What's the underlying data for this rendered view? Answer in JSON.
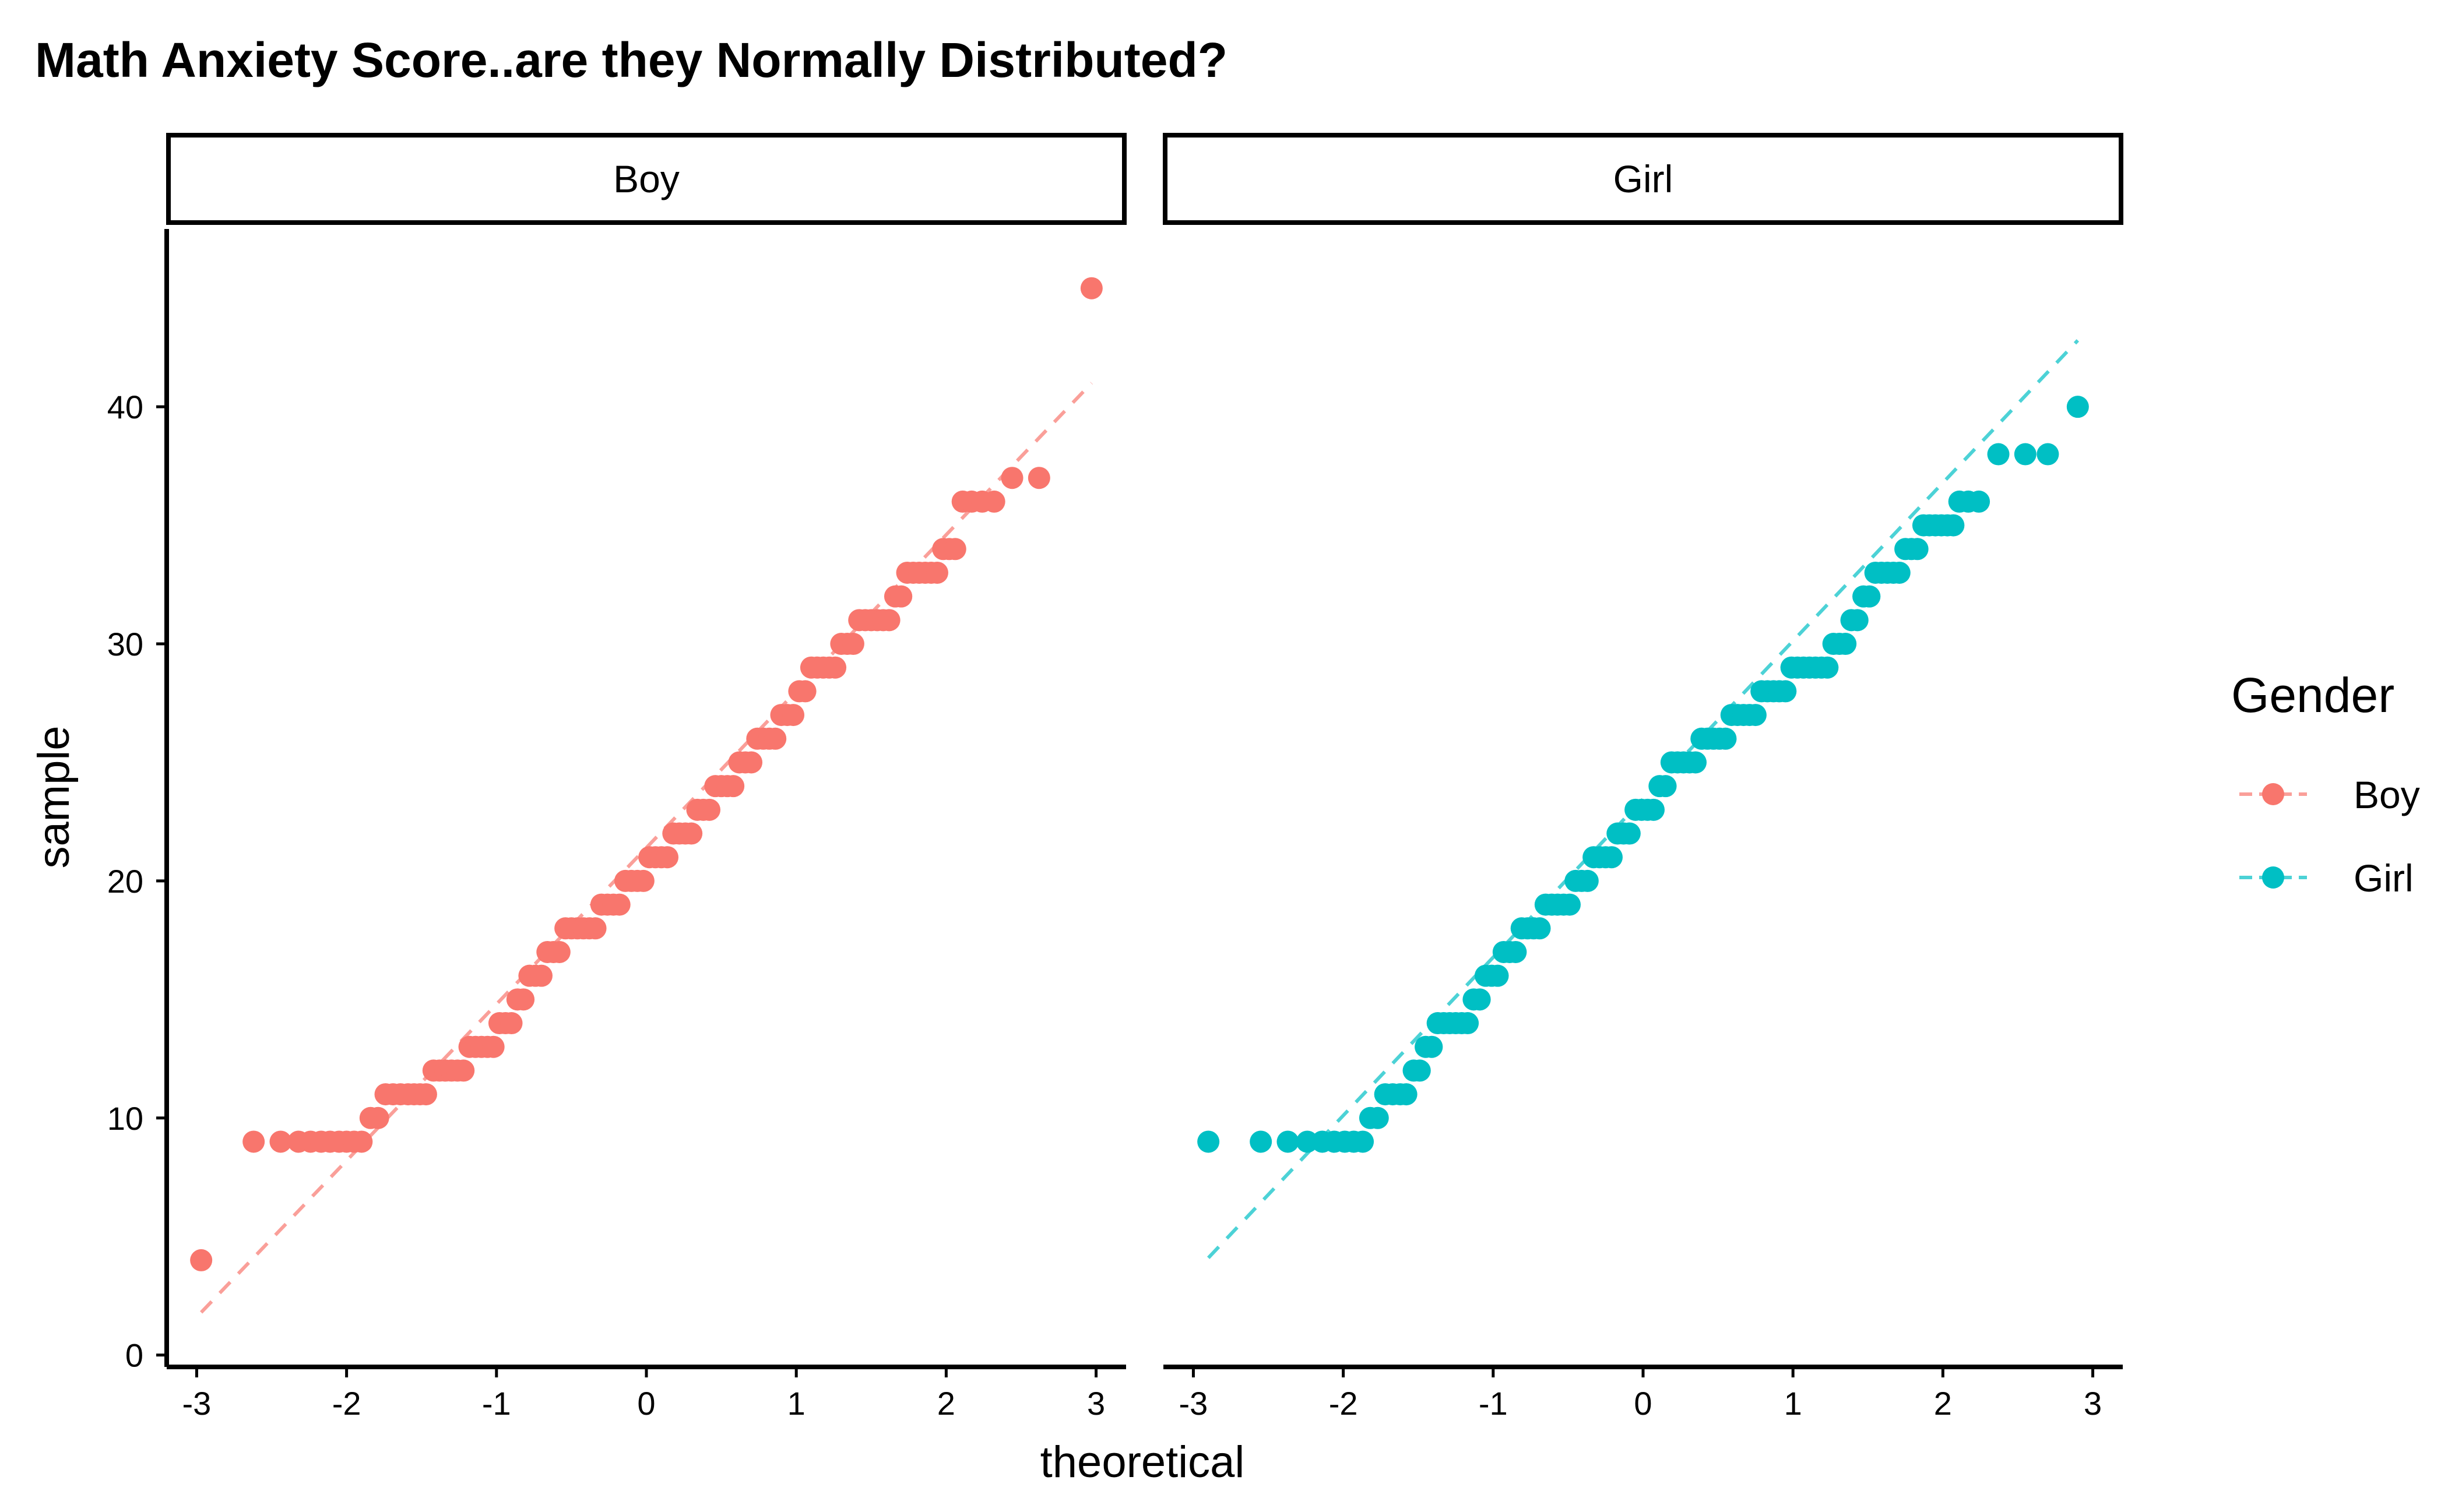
{
  "chart_data": {
    "type": "scatter",
    "subtype": "qq-plot",
    "title": "Math Anxiety Score..are they Normally Distributed?",
    "xlabel": "theoretical",
    "ylabel": "sample",
    "xlim": [
      -3.2,
      3.2
    ],
    "ylim": [
      -0.5,
      47.5
    ],
    "xticks": [
      -3,
      -2,
      -1,
      0,
      1,
      2,
      3
    ],
    "yticks": [
      0,
      10,
      20,
      30,
      40
    ],
    "grid": false,
    "legend": {
      "title": "Gender",
      "placement": "right",
      "entries": [
        "Boy",
        "Girl"
      ]
    },
    "panels": [
      {
        "strip_label": "Boy",
        "series": "Boy",
        "color": "#F8766D",
        "reference_line": {
          "x": [
            -2.97,
            2.97
          ],
          "y": [
            1.8,
            41.0
          ]
        },
        "points": [
          [
            -2.97,
            4
          ],
          [
            -2.62,
            9
          ],
          [
            -2.44,
            9
          ],
          [
            -2.32,
            9
          ],
          [
            -2.24,
            9
          ],
          [
            -2.17,
            9
          ],
          [
            -2.11,
            9
          ],
          [
            -2.05,
            9
          ],
          [
            -2.0,
            9
          ],
          [
            -1.95,
            9
          ],
          [
            -1.9,
            9
          ],
          [
            -1.84,
            10
          ],
          [
            -1.79,
            10
          ],
          [
            -1.74,
            11
          ],
          [
            -1.69,
            11
          ],
          [
            -1.64,
            11
          ],
          [
            -1.59,
            11
          ],
          [
            -1.55,
            11
          ],
          [
            -1.51,
            11
          ],
          [
            -1.47,
            11
          ],
          [
            -1.42,
            12
          ],
          [
            -1.38,
            12
          ],
          [
            -1.34,
            12
          ],
          [
            -1.3,
            12
          ],
          [
            -1.26,
            12
          ],
          [
            -1.22,
            12
          ],
          [
            -1.18,
            13
          ],
          [
            -1.14,
            13
          ],
          [
            -1.1,
            13
          ],
          [
            -1.06,
            13
          ],
          [
            -1.02,
            13
          ],
          [
            -0.98,
            14
          ],
          [
            -0.94,
            14
          ],
          [
            -0.9,
            14
          ],
          [
            -0.86,
            15
          ],
          [
            -0.82,
            15
          ],
          [
            -0.78,
            16
          ],
          [
            -0.74,
            16
          ],
          [
            -0.7,
            16
          ],
          [
            -0.66,
            17
          ],
          [
            -0.62,
            17
          ],
          [
            -0.58,
            17
          ],
          [
            -0.54,
            18
          ],
          [
            -0.5,
            18
          ],
          [
            -0.46,
            18
          ],
          [
            -0.42,
            18
          ],
          [
            -0.38,
            18
          ],
          [
            -0.34,
            18
          ],
          [
            -0.3,
            19
          ],
          [
            -0.26,
            19
          ],
          [
            -0.22,
            19
          ],
          [
            -0.18,
            19
          ],
          [
            -0.14,
            20
          ],
          [
            -0.1,
            20
          ],
          [
            -0.06,
            20
          ],
          [
            -0.02,
            20
          ],
          [
            0.02,
            21
          ],
          [
            0.06,
            21
          ],
          [
            0.1,
            21
          ],
          [
            0.14,
            21
          ],
          [
            0.18,
            22
          ],
          [
            0.22,
            22
          ],
          [
            0.26,
            22
          ],
          [
            0.3,
            22
          ],
          [
            0.34,
            23
          ],
          [
            0.38,
            23
          ],
          [
            0.42,
            23
          ],
          [
            0.46,
            24
          ],
          [
            0.5,
            24
          ],
          [
            0.54,
            24
          ],
          [
            0.58,
            24
          ],
          [
            0.62,
            25
          ],
          [
            0.66,
            25
          ],
          [
            0.7,
            25
          ],
          [
            0.74,
            26
          ],
          [
            0.78,
            26
          ],
          [
            0.82,
            26
          ],
          [
            0.86,
            26
          ],
          [
            0.9,
            27
          ],
          [
            0.94,
            27
          ],
          [
            0.98,
            27
          ],
          [
            1.02,
            28
          ],
          [
            1.06,
            28
          ],
          [
            1.1,
            29
          ],
          [
            1.14,
            29
          ],
          [
            1.18,
            29
          ],
          [
            1.22,
            29
          ],
          [
            1.26,
            29
          ],
          [
            1.3,
            30
          ],
          [
            1.34,
            30
          ],
          [
            1.38,
            30
          ],
          [
            1.42,
            31
          ],
          [
            1.46,
            31
          ],
          [
            1.5,
            31
          ],
          [
            1.54,
            31
          ],
          [
            1.58,
            31
          ],
          [
            1.62,
            31
          ],
          [
            1.66,
            32
          ],
          [
            1.7,
            32
          ],
          [
            1.74,
            33
          ],
          [
            1.78,
            33
          ],
          [
            1.82,
            33
          ],
          [
            1.86,
            33
          ],
          [
            1.9,
            33
          ],
          [
            1.94,
            33
          ],
          [
            1.98,
            34
          ],
          [
            2.02,
            34
          ],
          [
            2.06,
            34
          ],
          [
            2.11,
            36
          ],
          [
            2.17,
            36
          ],
          [
            2.24,
            36
          ],
          [
            2.32,
            36
          ],
          [
            2.44,
            37
          ],
          [
            2.62,
            37
          ],
          [
            2.97,
            45
          ]
        ]
      },
      {
        "strip_label": "Girl",
        "series": "Girl",
        "color": "#00BFC4",
        "reference_line": {
          "x": [
            -2.9,
            2.9
          ],
          "y": [
            4.1,
            42.8
          ]
        },
        "points": [
          [
            -2.9,
            9
          ],
          [
            -2.55,
            9
          ],
          [
            -2.37,
            9
          ],
          [
            -2.24,
            9
          ],
          [
            -2.14,
            9
          ],
          [
            -2.06,
            9
          ],
          [
            -1.99,
            9
          ],
          [
            -1.93,
            9
          ],
          [
            -1.87,
            9
          ],
          [
            -1.82,
            10
          ],
          [
            -1.77,
            10
          ],
          [
            -1.72,
            11
          ],
          [
            -1.67,
            11
          ],
          [
            -1.62,
            11
          ],
          [
            -1.58,
            11
          ],
          [
            -1.53,
            12
          ],
          [
            -1.49,
            12
          ],
          [
            -1.45,
            13
          ],
          [
            -1.41,
            13
          ],
          [
            -1.37,
            14
          ],
          [
            -1.33,
            14
          ],
          [
            -1.29,
            14
          ],
          [
            -1.25,
            14
          ],
          [
            -1.21,
            14
          ],
          [
            -1.17,
            14
          ],
          [
            -1.13,
            15
          ],
          [
            -1.09,
            15
          ],
          [
            -1.05,
            16
          ],
          [
            -1.01,
            16
          ],
          [
            -0.97,
            16
          ],
          [
            -0.93,
            17
          ],
          [
            -0.89,
            17
          ],
          [
            -0.85,
            17
          ],
          [
            -0.81,
            18
          ],
          [
            -0.77,
            18
          ],
          [
            -0.73,
            18
          ],
          [
            -0.69,
            18
          ],
          [
            -0.65,
            19
          ],
          [
            -0.61,
            19
          ],
          [
            -0.57,
            19
          ],
          [
            -0.53,
            19
          ],
          [
            -0.49,
            19
          ],
          [
            -0.45,
            20
          ],
          [
            -0.41,
            20
          ],
          [
            -0.37,
            20
          ],
          [
            -0.33,
            21
          ],
          [
            -0.29,
            21
          ],
          [
            -0.25,
            21
          ],
          [
            -0.21,
            21
          ],
          [
            -0.17,
            22
          ],
          [
            -0.13,
            22
          ],
          [
            -0.09,
            22
          ],
          [
            -0.05,
            23
          ],
          [
            -0.01,
            23
          ],
          [
            0.03,
            23
          ],
          [
            0.07,
            23
          ],
          [
            0.11,
            24
          ],
          [
            0.15,
            24
          ],
          [
            0.19,
            25
          ],
          [
            0.23,
            25
          ],
          [
            0.27,
            25
          ],
          [
            0.31,
            25
          ],
          [
            0.35,
            25
          ],
          [
            0.39,
            26
          ],
          [
            0.43,
            26
          ],
          [
            0.47,
            26
          ],
          [
            0.51,
            26
          ],
          [
            0.55,
            26
          ],
          [
            0.59,
            27
          ],
          [
            0.63,
            27
          ],
          [
            0.67,
            27
          ],
          [
            0.71,
            27
          ],
          [
            0.75,
            27
          ],
          [
            0.79,
            28
          ],
          [
            0.83,
            28
          ],
          [
            0.87,
            28
          ],
          [
            0.91,
            28
          ],
          [
            0.95,
            28
          ],
          [
            0.99,
            29
          ],
          [
            1.03,
            29
          ],
          [
            1.07,
            29
          ],
          [
            1.11,
            29
          ],
          [
            1.15,
            29
          ],
          [
            1.19,
            29
          ],
          [
            1.23,
            29
          ],
          [
            1.27,
            30
          ],
          [
            1.31,
            30
          ],
          [
            1.35,
            30
          ],
          [
            1.39,
            31
          ],
          [
            1.43,
            31
          ],
          [
            1.47,
            32
          ],
          [
            1.51,
            32
          ],
          [
            1.55,
            33
          ],
          [
            1.59,
            33
          ],
          [
            1.63,
            33
          ],
          [
            1.67,
            33
          ],
          [
            1.71,
            33
          ],
          [
            1.75,
            34
          ],
          [
            1.79,
            34
          ],
          [
            1.83,
            34
          ],
          [
            1.87,
            35
          ],
          [
            1.91,
            35
          ],
          [
            1.95,
            35
          ],
          [
            1.99,
            35
          ],
          [
            2.03,
            35
          ],
          [
            2.07,
            35
          ],
          [
            2.11,
            36
          ],
          [
            2.17,
            36
          ],
          [
            2.24,
            36
          ],
          [
            2.37,
            38
          ],
          [
            2.55,
            38
          ],
          [
            2.7,
            38
          ],
          [
            2.9,
            40
          ]
        ]
      }
    ]
  }
}
